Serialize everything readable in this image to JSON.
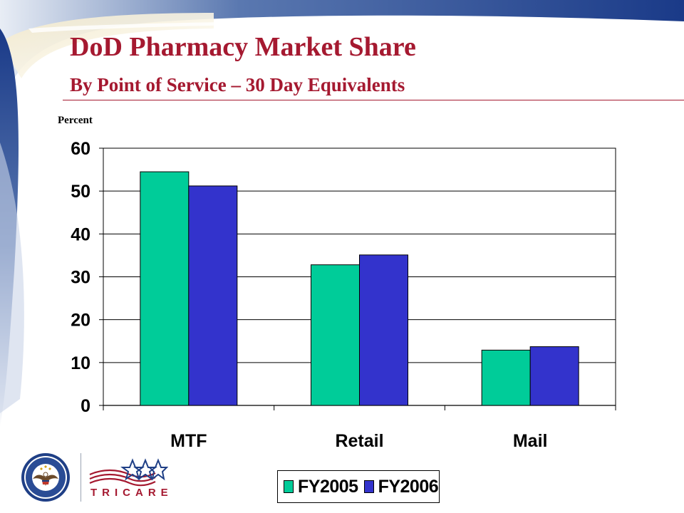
{
  "slide": {
    "title": "DoD Pharmacy Market Share",
    "subtitle": "By Point of Service – 30 Day Equivalents",
    "title_color": "#a51930"
  },
  "chart_data": {
    "type": "bar",
    "title": "",
    "xlabel": "",
    "ylabel": "Percent",
    "categories": [
      "MTF",
      "Retail",
      "Mail"
    ],
    "series": [
      {
        "name": "FY2005",
        "color": "#00cc99",
        "values": [
          54.5,
          32.8,
          12.9
        ]
      },
      {
        "name": "FY2006",
        "color": "#3333cc",
        "values": [
          51.2,
          35.1,
          13.7
        ]
      }
    ],
    "ylim": [
      0,
      60
    ],
    "yticks": [
      "0",
      "10",
      "20",
      "30",
      "40",
      "50",
      "60"
    ],
    "grid": true,
    "legend_position": "bottom"
  },
  "footer": {
    "seal_icon": "dod-seal-icon",
    "logo_text": "TRICARE"
  }
}
